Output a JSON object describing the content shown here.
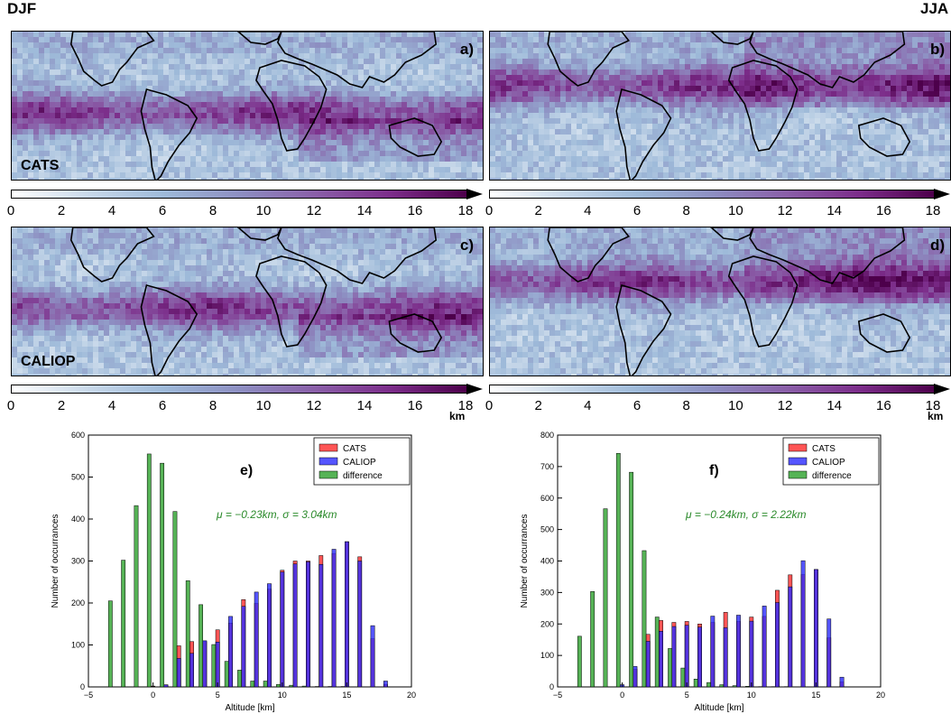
{
  "figure": {
    "season_left": "DJF",
    "season_right": "JJA"
  },
  "maps": [
    {
      "id": "a",
      "letter": "a)",
      "label": "CATS"
    },
    {
      "id": "b",
      "letter": "b)",
      "label": ""
    },
    {
      "id": "c",
      "letter": "c)",
      "label": "CALIOP"
    },
    {
      "id": "d",
      "letter": "d)",
      "label": ""
    }
  ],
  "colorbar": {
    "ticks": [
      "0",
      "2",
      "4",
      "6",
      "8",
      "10",
      "12",
      "14",
      "16",
      "18"
    ],
    "min": 0,
    "max": 18,
    "unit": "km",
    "colors": [
      "#ffffff",
      "#c9d9ea",
      "#9ebad9",
      "#8d8fc2",
      "#8a5fa8",
      "#7c2d8a",
      "#4d004b"
    ]
  },
  "colors": {
    "CATS": "#ff2a2a",
    "CALIOP": "#2a2aff",
    "difference": "#2ca02c",
    "annotation": "#2a8a2a"
  },
  "chart_data": [
    {
      "type": "bar",
      "panel": "e)",
      "xlabel": "Altitude [km]",
      "ylabel": "Number of occurrances",
      "xlim": [
        -5,
        20
      ],
      "ylim": [
        0,
        600
      ],
      "xticks": [
        "−5",
        "0",
        "5",
        "10",
        "15",
        "20"
      ],
      "yticks": [
        "0",
        "100",
        "200",
        "300",
        "400",
        "500",
        "600"
      ],
      "legend": [
        "CATS",
        "CALIOP",
        "difference"
      ],
      "legend_position": "top-right",
      "annotation": "μ = −0.23km, σ = 3.04km",
      "series": [
        {
          "name": "difference",
          "x": [
            -3.3,
            -2.3,
            -1.3,
            -0.3,
            0.7,
            1.7,
            2.7,
            3.7,
            4.7,
            5.7,
            6.7,
            7.7,
            8.7,
            9.7,
            10.7,
            11.7,
            12.7,
            13.7,
            14.7,
            15.7,
            16.7,
            17.7
          ],
          "values": [
            205,
            302,
            432,
            555,
            533,
            418,
            253,
            196,
            101,
            61,
            40,
            14,
            14,
            6,
            4,
            2,
            1,
            1,
            1,
            0,
            0,
            0
          ]
        },
        {
          "name": "CATS",
          "x": [
            -3,
            -2,
            -1,
            0,
            1,
            2,
            3,
            4,
            5,
            6,
            7,
            8,
            9,
            10,
            11,
            12,
            13,
            14,
            15,
            16,
            17,
            18
          ],
          "values": [
            0,
            0,
            0,
            2,
            5,
            98,
            108,
            108,
            136,
            152,
            208,
            199,
            233,
            278,
            300,
            300,
            313,
            318,
            346,
            310,
            115,
            6
          ]
        },
        {
          "name": "CALIOP",
          "x": [
            -3,
            -2,
            -1,
            0,
            1,
            2,
            3,
            4,
            5,
            6,
            7,
            8,
            9,
            10,
            11,
            12,
            13,
            14,
            15,
            16,
            17,
            18
          ],
          "values": [
            0,
            0,
            0,
            1,
            5,
            68,
            80,
            110,
            107,
            168,
            192,
            226,
            246,
            274,
            293,
            298,
            292,
            328,
            346,
            300,
            146,
            14
          ]
        }
      ]
    },
    {
      "type": "bar",
      "panel": "f)",
      "xlabel": "Altitude [km]",
      "ylabel": "Number of occurrances",
      "xlim": [
        -5,
        20
      ],
      "ylim": [
        0,
        800
      ],
      "xticks": [
        "−5",
        "0",
        "5",
        "10",
        "15",
        "20"
      ],
      "yticks": [
        "0",
        "100",
        "200",
        "300",
        "400",
        "500",
        "600",
        "700",
        "800"
      ],
      "legend": [
        "CATS",
        "CALIOP",
        "difference"
      ],
      "legend_position": "top-right",
      "annotation": "μ = −0.24km, σ = 2.22km",
      "series": [
        {
          "name": "difference",
          "x": [
            -3.3,
            -2.3,
            -1.3,
            -0.3,
            0.7,
            1.7,
            2.7,
            3.7,
            4.7,
            5.7,
            6.7,
            7.7,
            8.7,
            9.7,
            10.7,
            11.7,
            12.7,
            13.7,
            14.7,
            15.7,
            16.7,
            17.7
          ],
          "values": [
            161,
            303,
            566,
            742,
            682,
            433,
            222,
            122,
            60,
            25,
            14,
            7,
            4,
            2,
            1,
            1,
            1,
            0,
            0,
            0,
            0,
            0
          ]
        },
        {
          "name": "CATS",
          "x": [
            -3,
            -2,
            -1,
            0,
            1,
            2,
            3,
            4,
            5,
            6,
            7,
            8,
            9,
            10,
            11,
            12,
            13,
            14,
            15,
            16,
            17,
            18
          ],
          "values": [
            0,
            0,
            0,
            0,
            57,
            167,
            211,
            205,
            208,
            200,
            205,
            237,
            208,
            222,
            224,
            307,
            356,
            357,
            373,
            156,
            16,
            0
          ]
        },
        {
          "name": "CALIOP",
          "x": [
            -3,
            -2,
            -1,
            0,
            1,
            2,
            3,
            4,
            5,
            6,
            7,
            8,
            9,
            10,
            11,
            12,
            13,
            14,
            15,
            16,
            17,
            18
          ],
          "values": [
            0,
            0,
            0,
            7,
            65,
            145,
            177,
            192,
            196,
            190,
            225,
            188,
            228,
            209,
            257,
            268,
            318,
            401,
            373,
            216,
            31,
            0
          ]
        }
      ]
    }
  ]
}
